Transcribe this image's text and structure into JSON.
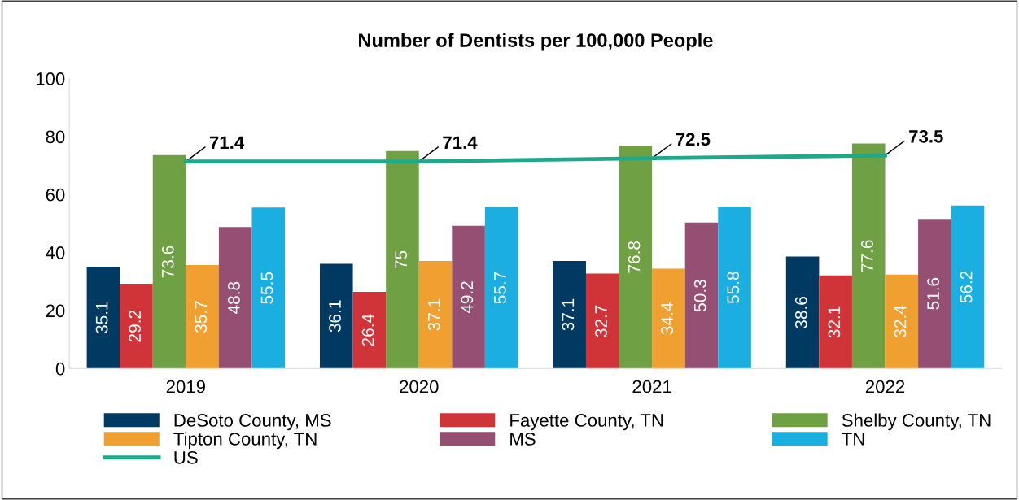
{
  "chart_data": {
    "type": "bar",
    "title": "Number of Dentists per 100,000 People",
    "categories": [
      "2019",
      "2020",
      "2021",
      "2022"
    ],
    "series": [
      {
        "name": "DeSoto County, MS",
        "color": "#003a63",
        "values": [
          35.1,
          36.1,
          37.1,
          38.6
        ]
      },
      {
        "name": "Fayette County, TN",
        "color": "#d13438",
        "values": [
          29.2,
          26.4,
          32.7,
          32.1
        ]
      },
      {
        "name": "Shelby County, TN",
        "color": "#70a044",
        "values": [
          73.6,
          75,
          76.8,
          77.6
        ]
      },
      {
        "name": "Tipton County, TN",
        "color": "#f0a030",
        "values": [
          35.7,
          37.1,
          34.4,
          32.4
        ]
      },
      {
        "name": "MS",
        "color": "#954f72",
        "values": [
          48.8,
          49.2,
          50.3,
          51.6
        ]
      },
      {
        "name": "TN",
        "color": "#1aafe0",
        "values": [
          55.5,
          55.7,
          55.8,
          56.2
        ]
      },
      {
        "name": "US",
        "color": "#1fa88a",
        "type": "line",
        "values": [
          71.4,
          71.4,
          72.5,
          73.5
        ]
      }
    ],
    "ylim": [
      0,
      100
    ],
    "yticks": [
      0,
      20,
      40,
      60,
      80,
      100
    ],
    "grid": false,
    "legend": "bottom",
    "data_labels": true,
    "marker": "none",
    "line_style": "solid"
  }
}
